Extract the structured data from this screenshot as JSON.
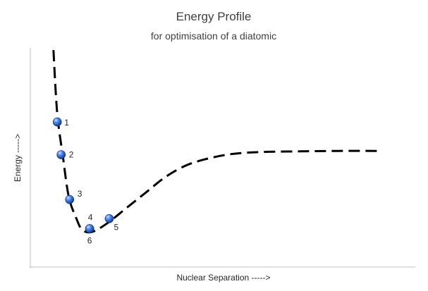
{
  "chart_data": {
    "type": "line",
    "title": "Energy Profile",
    "subtitle": "for optimisation of a diatomic",
    "xlabel": "Nuclear Separation  ----->",
    "ylabel": "Energy  ----->",
    "grid": false,
    "legend": "none",
    "xlim": [
      0,
      100
    ],
    "ylim": [
      0,
      100
    ],
    "series": [
      {
        "style": "dashed",
        "color": "#000000",
        "x": [
          6,
          7,
          8.5,
          10,
          12,
          13.5,
          16,
          20,
          25,
          30,
          35,
          40,
          45,
          52,
          60,
          70,
          80,
          90
        ],
        "y": [
          99,
          70,
          50,
          32,
          22,
          17,
          16,
          20,
          27,
          34,
          41,
          46,
          49,
          51.5,
          52.5,
          52.8,
          53,
          53
        ]
      }
    ],
    "points": [
      {
        "label": "1",
        "x": 7.0,
        "y": 66.2
      },
      {
        "label": "2",
        "x": 8.0,
        "y": 51.3
      },
      {
        "label": "3",
        "x": 10.2,
        "y": 30.8
      },
      {
        "label": "4",
        "x": 15.4,
        "y": 17.5
      },
      {
        "label": "5",
        "x": 20.5,
        "y": 22.1
      },
      {
        "label": "6",
        "x": 15.4,
        "y": 17.5
      }
    ]
  },
  "colors": {
    "axis": "#bfbfbf",
    "text": "#404040",
    "curve": "#000000",
    "marker": "#2f63c4"
  }
}
